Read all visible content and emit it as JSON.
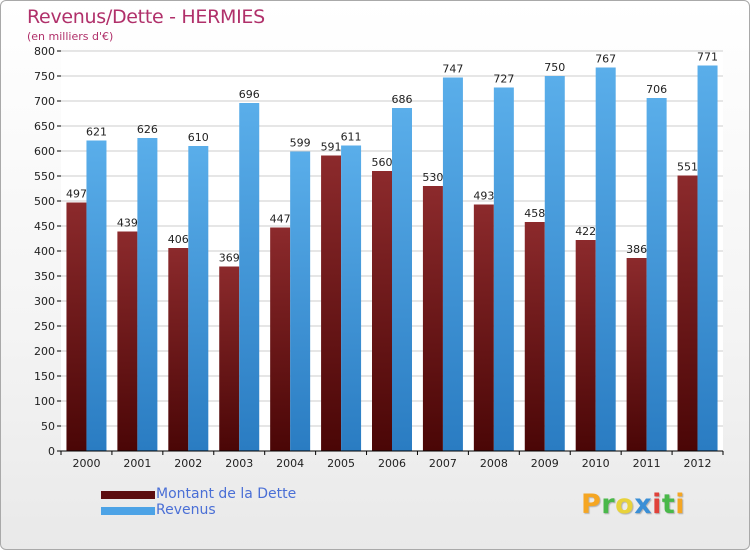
{
  "chart_data": {
    "type": "bar",
    "title": "Revenus/Dette - HERMIES",
    "subtitle": "(en milliers d'€)",
    "categories": [
      "2000",
      "2001",
      "2002",
      "2003",
      "2004",
      "2005",
      "2006",
      "2007",
      "2008",
      "2009",
      "2010",
      "2011",
      "2012"
    ],
    "series": [
      {
        "name": "Montant de la Dette",
        "values": [
          497,
          439,
          406,
          369,
          447,
          591,
          560,
          530,
          493,
          458,
          422,
          386,
          551
        ],
        "color": "#7a1a1c"
      },
      {
        "name": "Revenus",
        "values": [
          621,
          626,
          610,
          696,
          599,
          611,
          686,
          747,
          727,
          750,
          767,
          706,
          771
        ],
        "color": "#4da3e6"
      }
    ],
    "ylim": [
      0,
      800
    ],
    "yticks": [
      0,
      50,
      100,
      150,
      200,
      250,
      300,
      350,
      400,
      450,
      500,
      550,
      600,
      650,
      700,
      750,
      800
    ],
    "grid": true,
    "legend_position": "bottom-left"
  },
  "logo": {
    "text": "Proxiti",
    "letters": [
      {
        "ch": "P",
        "color": "#f5a623"
      },
      {
        "ch": "r",
        "color": "#4ab84a"
      },
      {
        "ch": "o",
        "color": "#e8d23a"
      },
      {
        "ch": "x",
        "color": "#3a8fd6"
      },
      {
        "ch": "i",
        "color": "#e0423a"
      },
      {
        "ch": "t",
        "color": "#4ab84a"
      },
      {
        "ch": "i",
        "color": "#f5a623"
      }
    ]
  }
}
